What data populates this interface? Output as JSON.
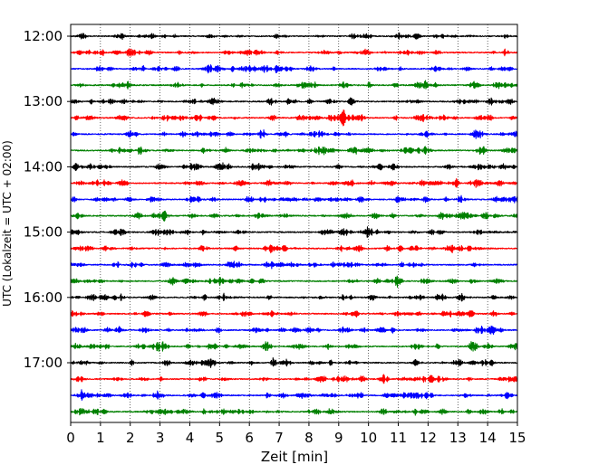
{
  "chart_data": {
    "type": "line",
    "subtype": "helicorder-seismogram",
    "title": "",
    "xlabel": "Zeit  [min]",
    "ylabel": "UTC (Lokalzeit = UTC + 02:00)",
    "xlim": [
      0,
      15
    ],
    "x_ticks": [
      0,
      1,
      2,
      3,
      4,
      5,
      6,
      7,
      8,
      9,
      10,
      11,
      12,
      13,
      14,
      15
    ],
    "x_tick_labels": [
      "0",
      "1",
      "2",
      "3",
      "4",
      "5",
      "6",
      "7",
      "8",
      "9",
      "10",
      "11",
      "12",
      "13",
      "14",
      "15"
    ],
    "y_tick_labels": [
      "12:00",
      "13:00",
      "14:00",
      "15:00",
      "16:00",
      "17:00"
    ],
    "minutes_per_trace": 15,
    "grid": {
      "x": true,
      "style": "dotted"
    },
    "legend": "none",
    "series_colors": [
      "#000000",
      "#ff0000",
      "#0000ff",
      "#008000"
    ],
    "traces": [
      {
        "start": "12:00",
        "color": "#000000"
      },
      {
        "start": "12:15",
        "color": "#ff0000"
      },
      {
        "start": "12:30",
        "color": "#0000ff"
      },
      {
        "start": "12:45",
        "color": "#008000"
      },
      {
        "start": "13:00",
        "color": "#000000"
      },
      {
        "start": "13:15",
        "color": "#ff0000",
        "events": [
          {
            "t": 9.1,
            "amp": 1.0
          }
        ]
      },
      {
        "start": "13:30",
        "color": "#0000ff"
      },
      {
        "start": "13:45",
        "color": "#008000"
      },
      {
        "start": "14:00",
        "color": "#000000",
        "events": [
          {
            "t": 0.25,
            "amp": 0.5
          }
        ]
      },
      {
        "start": "14:15",
        "color": "#ff0000"
      },
      {
        "start": "14:30",
        "color": "#0000ff"
      },
      {
        "start": "14:45",
        "color": "#008000"
      },
      {
        "start": "15:00",
        "color": "#000000"
      },
      {
        "start": "15:15",
        "color": "#ff0000"
      },
      {
        "start": "15:30",
        "color": "#0000ff"
      },
      {
        "start": "15:45",
        "color": "#008000"
      },
      {
        "start": "16:00",
        "color": "#000000"
      },
      {
        "start": "16:15",
        "color": "#ff0000"
      },
      {
        "start": "16:30",
        "color": "#0000ff"
      },
      {
        "start": "16:45",
        "color": "#008000"
      },
      {
        "start": "17:00",
        "color": "#000000"
      },
      {
        "start": "17:15",
        "color": "#ff0000"
      },
      {
        "start": "17:30",
        "color": "#0000ff"
      },
      {
        "start": "17:45",
        "color": "#008000"
      }
    ]
  }
}
